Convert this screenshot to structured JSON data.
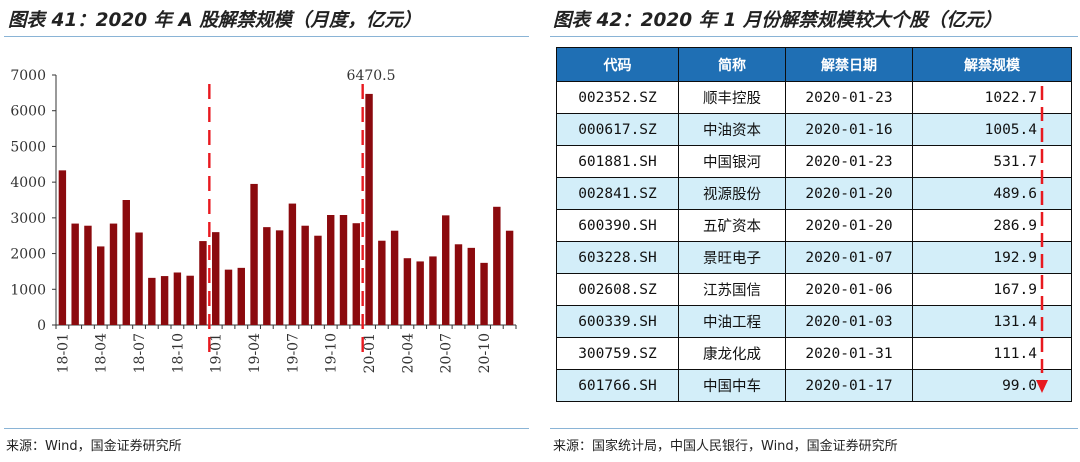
{
  "left": {
    "title": "图表 41：2020 年 A 股解禁规模（月度，亿元）",
    "source": "来源：Wind，国金证券研究所"
  },
  "right": {
    "title": "图表 42：2020 年 1 月份解禁规模较大个股（亿元）",
    "source": "来源：国家统计局，中国人民银行，Wind，国金证券研究所",
    "headers": [
      "代码",
      "简称",
      "解禁日期",
      "解禁规模"
    ],
    "rows": [
      {
        "code": "002352.SZ",
        "name": "顺丰控股",
        "date": "2020-01-23",
        "value": "1022.7"
      },
      {
        "code": "000617.SZ",
        "name": "中油资本",
        "date": "2020-01-16",
        "value": "1005.4"
      },
      {
        "code": "601881.SH",
        "name": "中国银河",
        "date": "2020-01-23",
        "value": "531.7"
      },
      {
        "code": "002841.SZ",
        "name": "视源股份",
        "date": "2020-01-20",
        "value": "489.6"
      },
      {
        "code": "600390.SH",
        "name": "五矿资本",
        "date": "2020-01-20",
        "value": "286.9"
      },
      {
        "code": "603228.SH",
        "name": "景旺电子",
        "date": "2020-01-07",
        "value": "192.9"
      },
      {
        "code": "002608.SZ",
        "name": "江苏国信",
        "date": "2020-01-06",
        "value": "167.9"
      },
      {
        "code": "600339.SH",
        "name": "中油工程",
        "date": "2020-01-03",
        "value": "131.4"
      },
      {
        "code": "300759.SZ",
        "name": "康龙化成",
        "date": "2020-01-31",
        "value": "111.4"
      },
      {
        "code": "601766.SH",
        "name": "中国中车",
        "date": "2020-01-17",
        "value": "99.0"
      }
    ],
    "arrow_color": "#e8191f"
  },
  "chart_data": {
    "type": "bar",
    "title": "",
    "xlabel": "",
    "ylabel": "",
    "ylim": [
      0,
      7000
    ],
    "yticks": [
      0,
      1000,
      2000,
      3000,
      4000,
      5000,
      6000,
      7000
    ],
    "categories": [
      "18-01",
      "18-02",
      "18-03",
      "18-04",
      "18-05",
      "18-06",
      "18-07",
      "18-08",
      "18-09",
      "18-10",
      "18-11",
      "18-12",
      "19-01",
      "19-02",
      "19-03",
      "19-04",
      "19-05",
      "19-06",
      "19-07",
      "19-08",
      "19-09",
      "19-10",
      "19-11",
      "19-12",
      "20-01",
      "20-02",
      "20-03",
      "20-04",
      "20-05",
      "20-06",
      "20-07",
      "20-08",
      "20-09",
      "20-10",
      "20-11",
      "20-12"
    ],
    "tick_labels": [
      "18-01",
      "18-04",
      "18-07",
      "18-10",
      "19-01",
      "19-04",
      "19-07",
      "19-10",
      "20-01",
      "20-04",
      "20-07",
      "20-10"
    ],
    "values": [
      4330,
      2840,
      2780,
      2200,
      2840,
      3500,
      2590,
      1320,
      1370,
      1470,
      1380,
      2350,
      2600,
      1550,
      1600,
      3950,
      2740,
      2650,
      3400,
      2780,
      2500,
      3080,
      3080,
      2850,
      6470.5,
      2360,
      2640,
      1870,
      1780,
      1920,
      3070,
      2260,
      2160,
      1740,
      3310,
      2640
    ],
    "annotation": {
      "category": "20-01",
      "text": "6470.5"
    },
    "dividers_after": [
      "18-12",
      "19-12"
    ],
    "bar_color": "#8b0a0e",
    "divider_color": "#e8191f",
    "grid": false
  }
}
